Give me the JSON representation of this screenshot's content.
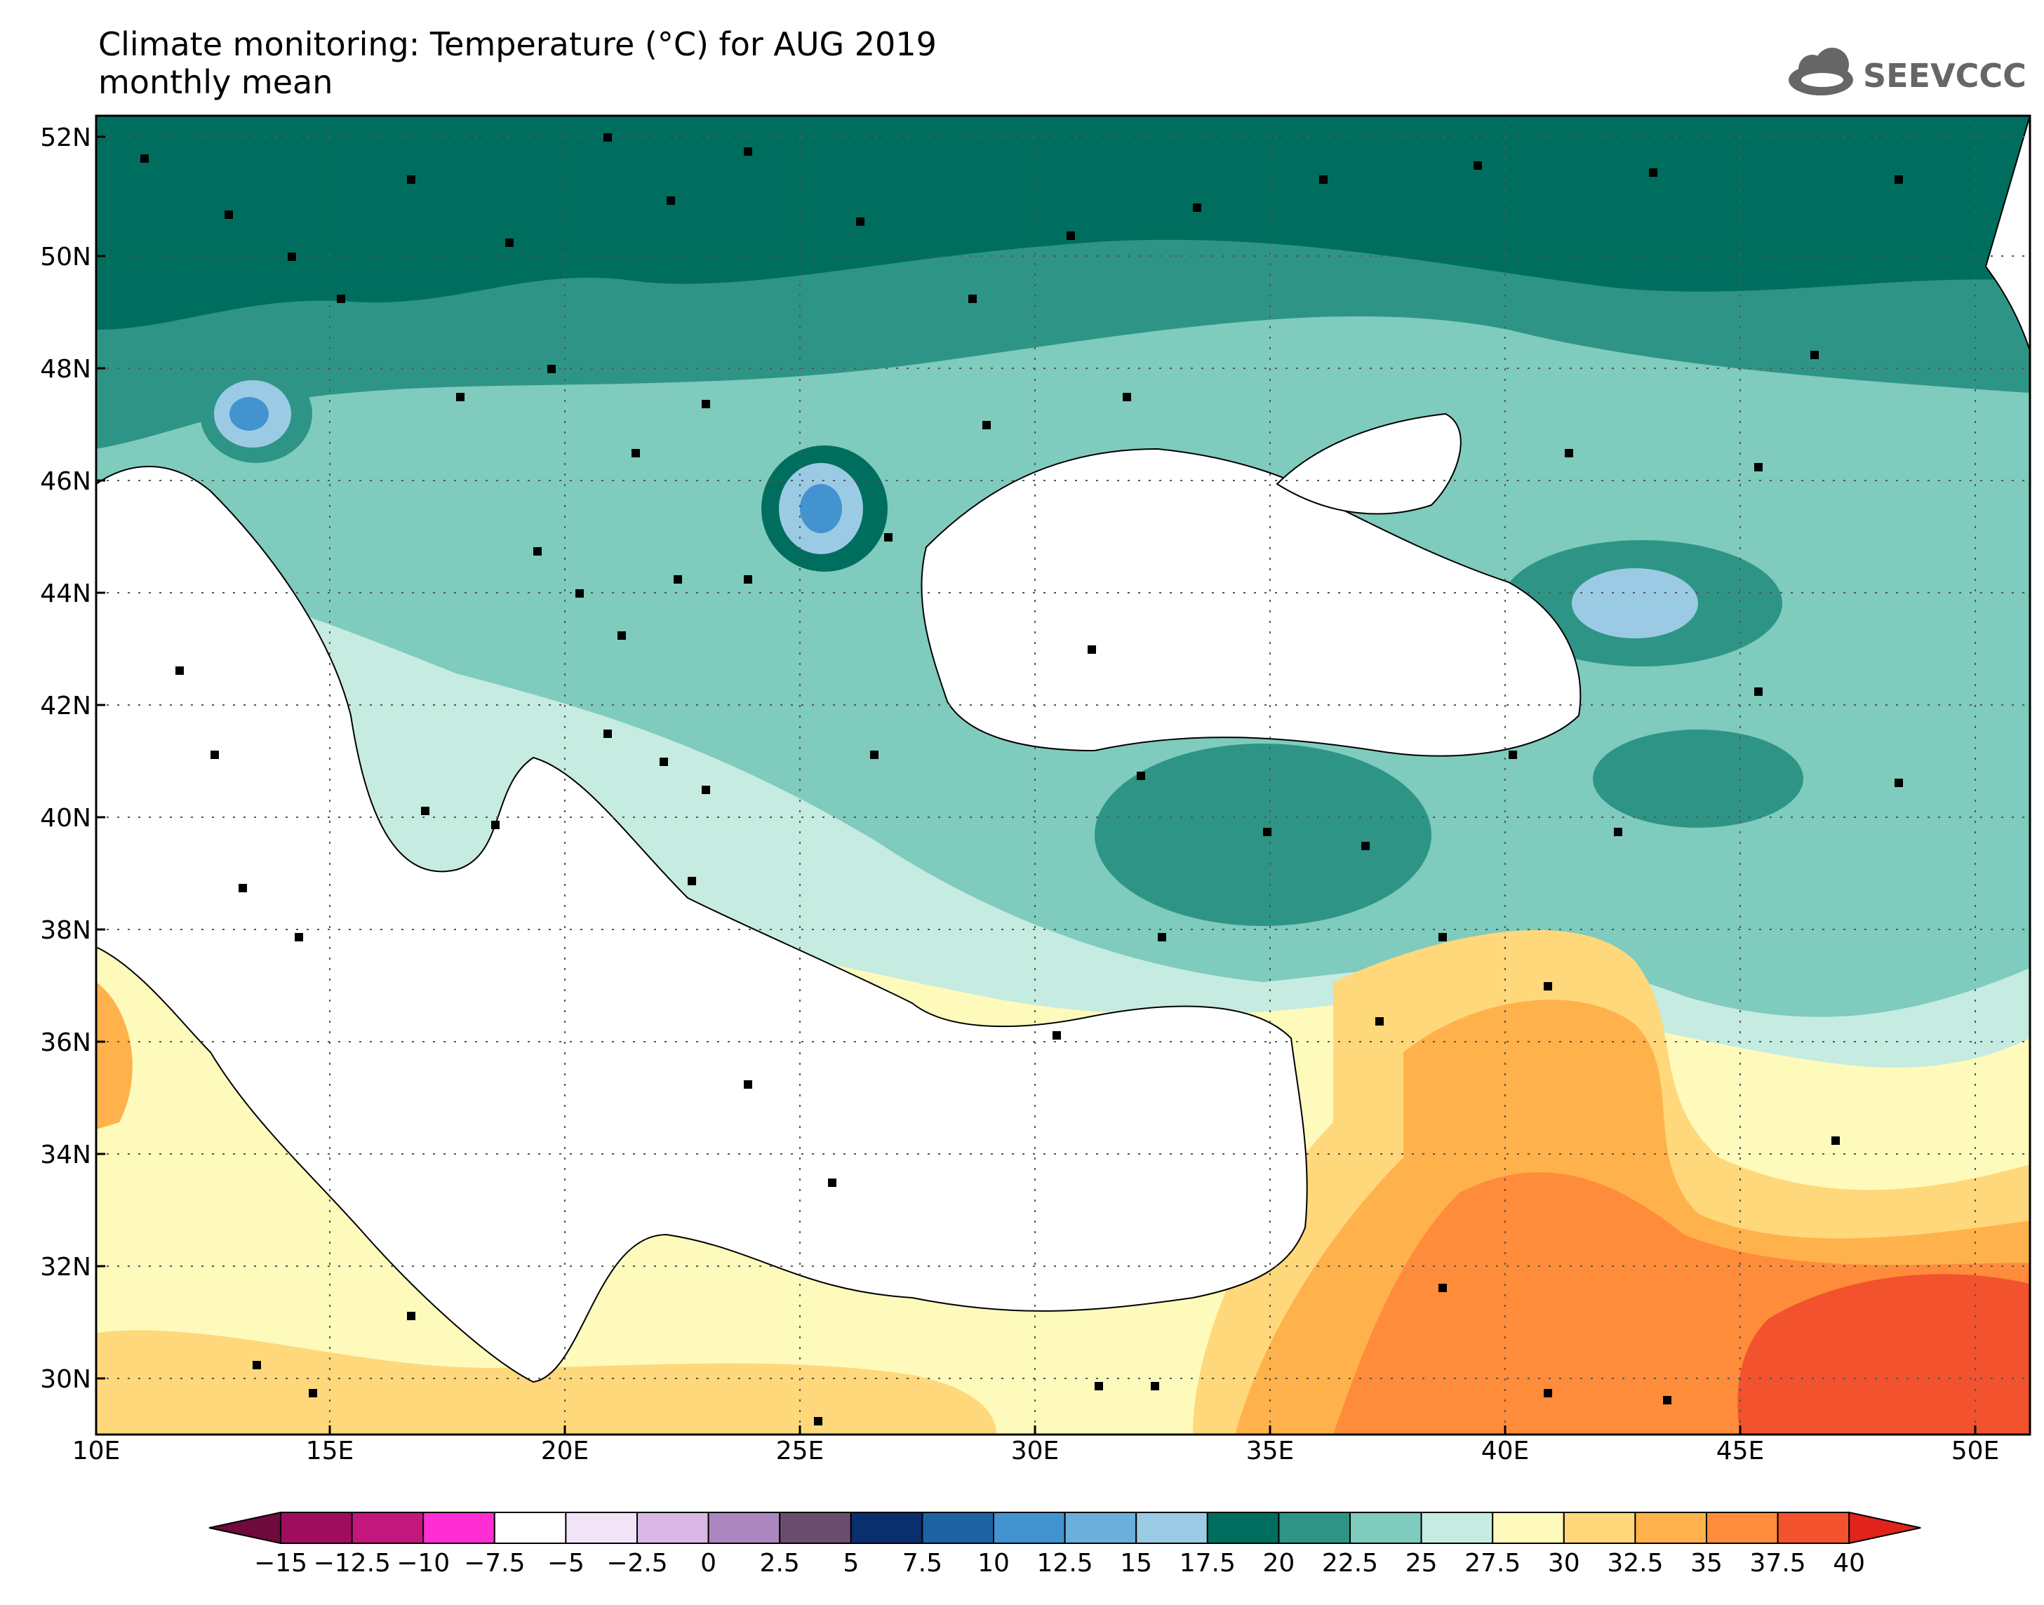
{
  "title": {
    "line1": "Climate monitoring: Temperature (°C) for AUG 2019",
    "line2": "monthly mean"
  },
  "logo": {
    "text": "SEEVCCC",
    "icon": "cloud-icon"
  },
  "map": {
    "lat_range": [
      29,
      52.5
    ],
    "lon_range": [
      10,
      51
    ],
    "lat_ticks": [
      {
        "value": 52,
        "label": "52N"
      },
      {
        "value": 50,
        "label": "50N"
      },
      {
        "value": 48,
        "label": "48N"
      },
      {
        "value": 46,
        "label": "46N"
      },
      {
        "value": 44,
        "label": "44N"
      },
      {
        "value": 42,
        "label": "42N"
      },
      {
        "value": 40,
        "label": "40N"
      },
      {
        "value": 38,
        "label": "38N"
      },
      {
        "value": 36,
        "label": "36N"
      },
      {
        "value": 34,
        "label": "34N"
      },
      {
        "value": 32,
        "label": "32N"
      },
      {
        "value": 30,
        "label": "30N"
      }
    ],
    "lon_ticks": [
      {
        "value": 10,
        "label": "10E"
      },
      {
        "value": 15,
        "label": "15E"
      },
      {
        "value": 20,
        "label": "20E"
      },
      {
        "value": 25,
        "label": "25E"
      },
      {
        "value": 30,
        "label": "30E"
      },
      {
        "value": 35,
        "label": "35E"
      },
      {
        "value": 40,
        "label": "40E"
      },
      {
        "value": 45,
        "label": "45E"
      },
      {
        "value": 50,
        "label": "50E"
      }
    ],
    "grid": "dotted",
    "background_zone_colors": {
      "north": "#006e5e",
      "upper": "#2e9586",
      "middle": "#7fcbbd",
      "mid_south": "#c6ebe1",
      "south": "#fefabc",
      "hot": "#ffd87b",
      "hotter": "#ffb24b",
      "hottest": "#ff8c3a",
      "extreme": "#f2522d"
    }
  },
  "colorbar": {
    "labels": [
      "-15",
      "-12.5",
      "-10",
      "-7.5",
      "-5",
      "-2.5",
      "0",
      "2.5",
      "5",
      "7.5",
      "10",
      "12.5",
      "15",
      "17.5",
      "20",
      "22.5",
      "25",
      "27.5",
      "30",
      "32.5",
      "35",
      "37.5",
      "40"
    ],
    "colors": [
      "#9f0e5e",
      "#c3177e",
      "#ff2ed4",
      "#ffffff",
      "#f0e4f6",
      "#d9b8e6",
      "#ac87bf",
      "#6a4d6e",
      "#0b2e6c",
      "#1d63a4",
      "#4293cf",
      "#6bb0da",
      "#9bcbe4",
      "#006e5e",
      "#2e9586",
      "#7fcbbd",
      "#c6ebe1",
      "#fefabc",
      "#ffd87b",
      "#ffb24b",
      "#ff8c3a",
      "#f2522d"
    ],
    "under_color": "#6e0a3c",
    "over_color": "#e0241c"
  }
}
